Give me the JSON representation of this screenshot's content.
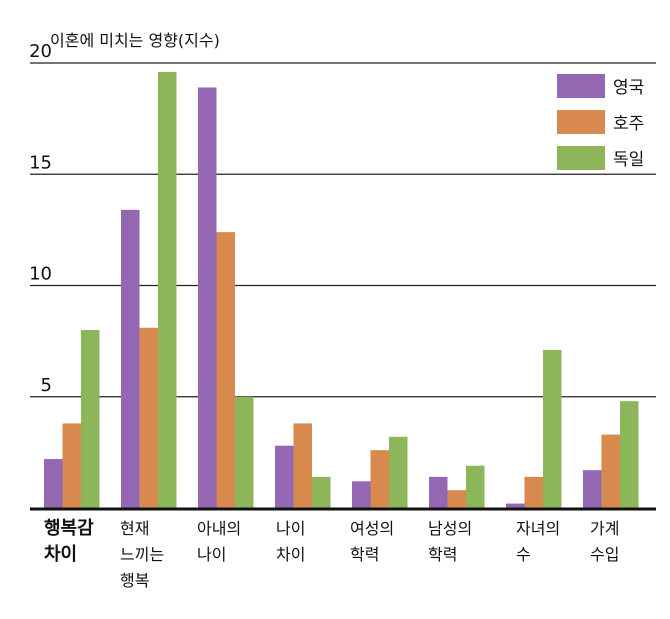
{
  "chart_data": {
    "type": "bar",
    "ylabel": "이혼에 미치는 영향(지수)",
    "ylim": [
      0,
      20
    ],
    "yticks": [
      5,
      10,
      15,
      20
    ],
    "grid": true,
    "legend_position": "top-right",
    "categories": [
      [
        "행복감",
        "차이"
      ],
      [
        "현재",
        "느끼는",
        "행복"
      ],
      [
        "아내의",
        "나이"
      ],
      [
        "나이",
        "차이"
      ],
      [
        "여성의",
        "학력"
      ],
      [
        "남성의",
        "학력"
      ],
      [
        "자녀의",
        "수"
      ],
      [
        "가계",
        "수입"
      ]
    ],
    "series": [
      {
        "name": "영국",
        "color": "#9467b3",
        "values": [
          2.2,
          13.4,
          18.9,
          2.8,
          1.2,
          1.4,
          0.2,
          1.7
        ]
      },
      {
        "name": "호주",
        "color": "#d88a4e",
        "values": [
          3.8,
          8.1,
          12.4,
          3.8,
          2.6,
          0.8,
          1.4,
          3.3
        ]
      },
      {
        "name": "독일",
        "color": "#8db55a",
        "values": [
          8.0,
          19.6,
          5.0,
          1.4,
          3.2,
          1.9,
          7.1,
          4.8
        ]
      }
    ]
  }
}
